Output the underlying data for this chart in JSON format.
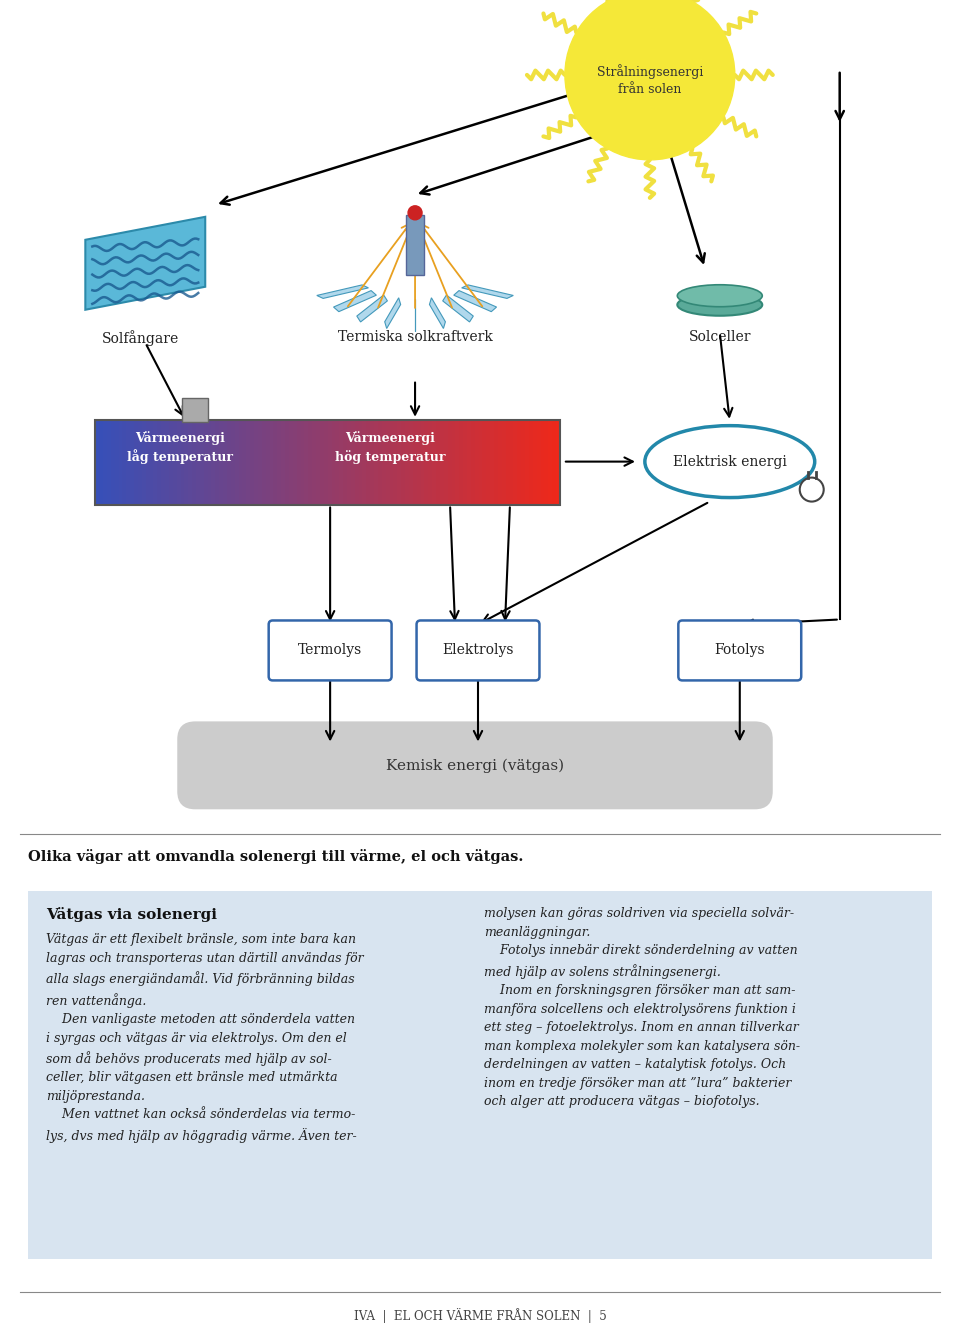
{
  "page_bg": "#ffffff",
  "fig_width": 9.6,
  "fig_height": 13.27,
  "sun_text": "Strålningsenergi\nfrån solen",
  "solar_collector_label": "Solfångare",
  "thermal_plant_label": "Termiska solkraftverk",
  "solar_cell_label": "Solceller",
  "heat_low_label": "Värmeenergi\nlåg temperatur",
  "heat_high_label": "Värmeenergi\nhög temperatur",
  "electric_label": "Elektrisk energi",
  "termolys_label": "Termolys",
  "elektrolys_label": "Elektrolys",
  "fotolys_label": "Fotolys",
  "kemisk_label": "Kemisk energi (vätgas)",
  "caption": "Olika vägar att omvandla solenergi till värme, el och vätgas.",
  "box_title": "Vätgas via solenergi",
  "box_bg": "#d8e4f0",
  "box_col1": "Vätgas är ett flexibelt bränsle, som inte bara kan\nlagras och transporteras utan därtill användas för\nalla slags energiändamål. Vid förbränning bildas\nren vattenånga.\n    Den vanligaste metoden att sönderdela vatten\ni syrgas och vätgas är via elektrolys. Om den el\nsom då behövs producerats med hjälp av sol-\nceller, blir vätgasen ett bränsle med utmärkta\nmiljöprestanda.\n    Men vattnet kan också sönderdelas via termo-\nlys, dvs med hjälp av höggradig värme. Även ter-",
  "box_col2": "molysen kan göras soldriven via speciella solvär-\nmeanläggningar.\n    Fotolys innebär direkt sönderdelning av vatten\nmed hjälp av solens strålningsenergi.\n    Inom en forskningsgren försöker man att sam-\nmanföra solcellens och elektrolysörens funktion i\nett steg – fotoelektrolys. Inom en annan tillverkar\nman komplexa molekyler som kan katalysera sön-\nderdelningen av vatten – katalytisk fotolys. Och\ninom en tredje försöker man att ”lura” bakterier\noch alger att producera vätgas – biofotolys.",
  "footer_text": "IVA  |  EL OCH VÄRME FRÅN SOLEN  |  5"
}
